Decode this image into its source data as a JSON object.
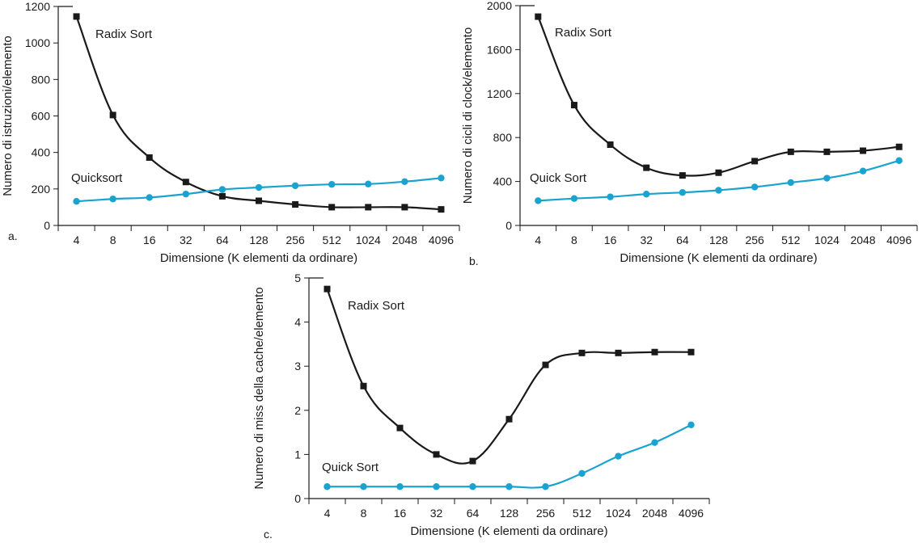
{
  "colors": {
    "radix": "#1a1a1a",
    "quick": "#1ba3cf",
    "axis": "#1a1a1a"
  },
  "chart_data": [
    {
      "type": "line",
      "panel_label": "a.",
      "title": "",
      "xlabel": "Dimensione (K elementi da ordinare)",
      "ylabel": "Numero di istruzioni/elemento",
      "categories": [
        "4",
        "8",
        "16",
        "32",
        "64",
        "128",
        "256",
        "512",
        "1024",
        "2048",
        "4096"
      ],
      "ylim": [
        0,
        1200
      ],
      "yticks": [
        0,
        200,
        400,
        600,
        800,
        1000,
        1200
      ],
      "grid": false,
      "series": [
        {
          "name": "Radix Sort",
          "marker": "square",
          "color": "#1a1a1a",
          "values": [
            1145,
            605,
            372,
            238,
            160,
            135,
            115,
            100,
            100,
            100,
            88
          ]
        },
        {
          "name": "Quicksort",
          "marker": "circle",
          "color": "#1ba3cf",
          "values": [
            132,
            145,
            153,
            172,
            197,
            208,
            218,
            225,
            227,
            240,
            260
          ]
        }
      ]
    },
    {
      "type": "line",
      "panel_label": "b.",
      "title": "",
      "xlabel": "Dimensione (K elementi da ordinare)",
      "ylabel": "Numero di cicli di clock/elemento",
      "categories": [
        "4",
        "8",
        "16",
        "32",
        "64",
        "128",
        "256",
        "512",
        "1024",
        "2048",
        "4096"
      ],
      "ylim": [
        0,
        2000
      ],
      "yticks": [
        0,
        400,
        800,
        1200,
        1600,
        2000
      ],
      "grid": false,
      "series": [
        {
          "name": "Radix Sort",
          "marker": "square",
          "color": "#1a1a1a",
          "values": [
            1900,
            1095,
            735,
            525,
            455,
            480,
            585,
            670,
            670,
            680,
            715
          ]
        },
        {
          "name": "Quick Sort",
          "marker": "circle",
          "color": "#1ba3cf",
          "values": [
            225,
            245,
            260,
            285,
            300,
            320,
            350,
            390,
            430,
            495,
            590
          ]
        }
      ]
    },
    {
      "type": "line",
      "panel_label": "c.",
      "title": "",
      "xlabel": "Dimensione (K elementi da ordinare)",
      "ylabel": "Numero di miss della cache/elemento",
      "categories": [
        "4",
        "8",
        "16",
        "32",
        "64",
        "128",
        "256",
        "512",
        "1024",
        "2048",
        "4096"
      ],
      "ylim": [
        0,
        5
      ],
      "yticks": [
        0,
        1,
        2,
        3,
        4,
        5
      ],
      "grid": false,
      "series": [
        {
          "name": "Radix Sort",
          "marker": "square",
          "color": "#1a1a1a",
          "values": [
            4.75,
            2.55,
            1.6,
            1.0,
            0.85,
            1.8,
            3.03,
            3.3,
            3.3,
            3.32,
            3.32
          ]
        },
        {
          "name": "Quick Sort",
          "marker": "circle",
          "color": "#1ba3cf",
          "values": [
            0.27,
            0.27,
            0.27,
            0.27,
            0.27,
            0.27,
            0.27,
            0.57,
            0.96,
            1.27,
            1.67
          ]
        }
      ]
    }
  ]
}
